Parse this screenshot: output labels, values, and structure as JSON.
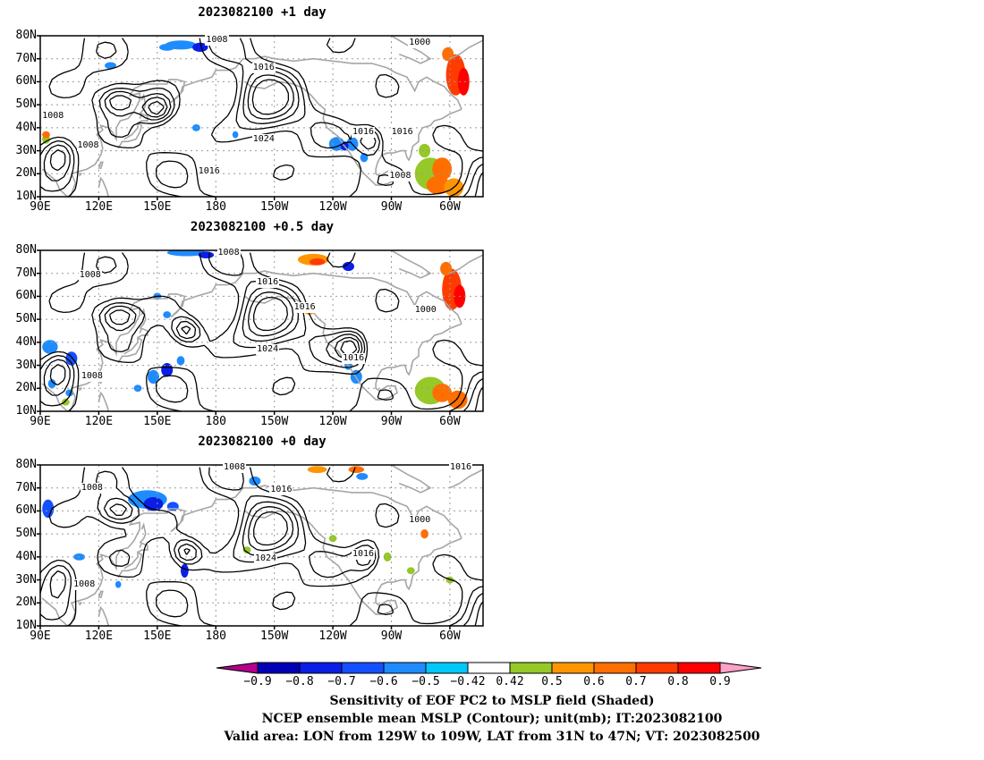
{
  "panels": [
    {
      "title": "2023082100 +1 day",
      "contour_labels": [
        {
          "text": "1008",
          "lon": 181,
          "lat": 78
        },
        {
          "text": "1000",
          "lon": 285,
          "lat": 77
        },
        {
          "text": "1016",
          "lon": 205,
          "lat": 66
        },
        {
          "text": "1008",
          "lon": 97,
          "lat": 45
        },
        {
          "text": "1024",
          "lon": 205,
          "lat": 35
        },
        {
          "text": "1016",
          "lon": 256,
          "lat": 38
        },
        {
          "text": "1016",
          "lon": 276,
          "lat": 38
        },
        {
          "text": "1008",
          "lon": 115,
          "lat": 32
        },
        {
          "text": "1016",
          "lon": 177,
          "lat": 21
        },
        {
          "text": "1008",
          "lon": 275,
          "lat": 19
        }
      ],
      "shading": [
        {
          "lon": 162,
          "lat": 76,
          "rx": 8,
          "ry": 2,
          "v": -0.55
        },
        {
          "lon": 172,
          "lat": 75,
          "rx": 4,
          "ry": 2,
          "v": -0.72
        },
        {
          "lon": 155,
          "lat": 75,
          "rx": 4,
          "ry": 1.5,
          "v": -0.5
        },
        {
          "lon": 126,
          "lat": 67,
          "rx": 3,
          "ry": 1.5,
          "v": -0.5
        },
        {
          "lon": 303,
          "lat": 63,
          "rx": 5,
          "ry": 9,
          "v": 0.75
        },
        {
          "lon": 307,
          "lat": 60,
          "rx": 3,
          "ry": 6,
          "v": 0.82
        },
        {
          "lon": 299,
          "lat": 72,
          "rx": 3,
          "ry": 3,
          "v": 0.62
        },
        {
          "lon": 93,
          "lat": 35,
          "rx": 2,
          "ry": 2,
          "v": 0.5
        },
        {
          "lon": 93,
          "lat": 37,
          "rx": 2,
          "ry": 1.5,
          "v": 0.65
        },
        {
          "lon": 242,
          "lat": 33,
          "rx": 4,
          "ry": 3,
          "v": -0.55
        },
        {
          "lon": 250,
          "lat": 33,
          "rx": 3,
          "ry": 3,
          "v": -0.52
        },
        {
          "lon": 246,
          "lat": 32,
          "rx": 2,
          "ry": 2,
          "v": -0.72
        },
        {
          "lon": 256,
          "lat": 27,
          "rx": 2,
          "ry": 2,
          "v": -0.5
        },
        {
          "lon": 290,
          "lat": 20,
          "rx": 8,
          "ry": 7,
          "v": 0.5
        },
        {
          "lon": 296,
          "lat": 22,
          "rx": 5,
          "ry": 5,
          "v": 0.62
        },
        {
          "lon": 294,
          "lat": 15,
          "rx": 6,
          "ry": 4,
          "v": 0.7
        },
        {
          "lon": 302,
          "lat": 14,
          "rx": 5,
          "ry": 4,
          "v": 0.55
        },
        {
          "lon": 287,
          "lat": 30,
          "rx": 3,
          "ry": 3,
          "v": 0.5
        },
        {
          "lon": 170,
          "lat": 40,
          "rx": 2,
          "ry": 1.5,
          "v": -0.5
        },
        {
          "lon": 190,
          "lat": 37,
          "rx": 1.5,
          "ry": 1.5,
          "v": -0.5
        }
      ],
      "centers": [
        {
          "lon": 130,
          "lat": 52,
          "sx": 10,
          "sy": 6
        },
        {
          "lon": 205,
          "lat": 50,
          "sx": 16,
          "sy": 14
        },
        {
          "lon": 100,
          "lat": 30,
          "sx": 9,
          "sy": 9
        },
        {
          "lon": 260,
          "lat": 35,
          "sx": 8,
          "sy": 7
        },
        {
          "lon": 150,
          "lat": 48,
          "sx": 8,
          "sy": 6
        }
      ]
    },
    {
      "title": "2023082100 +0.5 day",
      "contour_labels": [
        {
          "text": "1008",
          "lon": 187,
          "lat": 79
        },
        {
          "text": "1008",
          "lon": 116,
          "lat": 69
        },
        {
          "text": "1016",
          "lon": 207,
          "lat": 66
        },
        {
          "text": "1016",
          "lon": 226,
          "lat": 55
        },
        {
          "text": "1000",
          "lon": 288,
          "lat": 54
        },
        {
          "text": "1024",
          "lon": 207,
          "lat": 37
        },
        {
          "text": "1016",
          "lon": 251,
          "lat": 33
        },
        {
          "text": "1008",
          "lon": 117,
          "lat": 25
        }
      ],
      "shading": [
        {
          "lon": 165,
          "lat": 79,
          "rx": 10,
          "ry": 1.5,
          "v": -0.5
        },
        {
          "lon": 175,
          "lat": 78,
          "rx": 4,
          "ry": 1.5,
          "v": -0.72
        },
        {
          "lon": 230,
          "lat": 76,
          "rx": 8,
          "ry": 2.5,
          "v": 0.55
        },
        {
          "lon": 232,
          "lat": 75,
          "rx": 4,
          "ry": 1.5,
          "v": 0.72
        },
        {
          "lon": 248,
          "lat": 73,
          "rx": 3,
          "ry": 2,
          "v": -0.72
        },
        {
          "lon": 301,
          "lat": 63,
          "rx": 5,
          "ry": 9,
          "v": 0.75
        },
        {
          "lon": 305,
          "lat": 60,
          "rx": 3,
          "ry": 5,
          "v": 0.82
        },
        {
          "lon": 298,
          "lat": 72,
          "rx": 3,
          "ry": 3,
          "v": 0.62
        },
        {
          "lon": 228,
          "lat": 54,
          "rx": 3,
          "ry": 2,
          "v": 0.58
        },
        {
          "lon": 95,
          "lat": 38,
          "rx": 4,
          "ry": 3,
          "v": -0.55
        },
        {
          "lon": 106,
          "lat": 33,
          "rx": 3,
          "ry": 3,
          "v": -0.65
        },
        {
          "lon": 96,
          "lat": 22,
          "rx": 2,
          "ry": 2,
          "v": -0.55
        },
        {
          "lon": 105,
          "lat": 18,
          "rx": 2,
          "ry": 1.5,
          "v": -0.5
        },
        {
          "lon": 148,
          "lat": 25,
          "rx": 3,
          "ry": 3,
          "v": -0.55
        },
        {
          "lon": 155,
          "lat": 28,
          "rx": 3,
          "ry": 3,
          "v": -0.7
        },
        {
          "lon": 162,
          "lat": 32,
          "rx": 2,
          "ry": 2,
          "v": -0.55
        },
        {
          "lon": 140,
          "lat": 20,
          "rx": 2,
          "ry": 1.5,
          "v": -0.5
        },
        {
          "lon": 252,
          "lat": 25,
          "rx": 3,
          "ry": 3,
          "v": -0.55
        },
        {
          "lon": 248,
          "lat": 30,
          "rx": 2,
          "ry": 2,
          "v": -0.5
        },
        {
          "lon": 290,
          "lat": 19,
          "rx": 8,
          "ry": 6,
          "v": 0.5
        },
        {
          "lon": 296,
          "lat": 18,
          "rx": 5,
          "ry": 4,
          "v": 0.7
        },
        {
          "lon": 304,
          "lat": 15,
          "rx": 5,
          "ry": 4,
          "v": 0.62
        },
        {
          "lon": 103,
          "lat": 14,
          "rx": 2,
          "ry": 1.5,
          "v": 0.5
        },
        {
          "lon": 150,
          "lat": 60,
          "rx": 2,
          "ry": 1.5,
          "v": -0.5
        },
        {
          "lon": 155,
          "lat": 52,
          "rx": 2,
          "ry": 1.5,
          "v": -0.55
        }
      ],
      "centers": [
        {
          "lon": 130,
          "lat": 52,
          "sx": 10,
          "sy": 6
        },
        {
          "lon": 205,
          "lat": 48,
          "sx": 16,
          "sy": 14
        },
        {
          "lon": 100,
          "lat": 30,
          "sx": 9,
          "sy": 9
        },
        {
          "lon": 250,
          "lat": 38,
          "sx": 8,
          "sy": 7
        },
        {
          "lon": 165,
          "lat": 45,
          "sx": 8,
          "sy": 6
        }
      ]
    },
    {
      "title": "2023082100 +0 day",
      "contour_labels": [
        {
          "text": "1008",
          "lon": 190,
          "lat": 79
        },
        {
          "text": "1016",
          "lon": 306,
          "lat": 79
        },
        {
          "text": "1008",
          "lon": 117,
          "lat": 70
        },
        {
          "text": "1016",
          "lon": 214,
          "lat": 69
        },
        {
          "text": "1000",
          "lon": 285,
          "lat": 56
        },
        {
          "text": "1024",
          "lon": 206,
          "lat": 39
        },
        {
          "text": "1016",
          "lon": 256,
          "lat": 41
        },
        {
          "text": "1008",
          "lon": 113,
          "lat": 28
        }
      ],
      "shading": [
        {
          "lon": 145,
          "lat": 65,
          "rx": 10,
          "ry": 4,
          "v": -0.55
        },
        {
          "lon": 148,
          "lat": 63,
          "rx": 5,
          "ry": 3,
          "v": -0.72
        },
        {
          "lon": 158,
          "lat": 62,
          "rx": 3,
          "ry": 2,
          "v": -0.65
        },
        {
          "lon": 94,
          "lat": 61,
          "rx": 3,
          "ry": 4,
          "v": -0.6
        },
        {
          "lon": 110,
          "lat": 40,
          "rx": 3,
          "ry": 1.5,
          "v": -0.55
        },
        {
          "lon": 164,
          "lat": 34,
          "rx": 2,
          "ry": 3,
          "v": -0.75
        },
        {
          "lon": 200,
          "lat": 73,
          "rx": 3,
          "ry": 2,
          "v": -0.5
        },
        {
          "lon": 214,
          "lat": 69,
          "rx": 3,
          "ry": 2,
          "v": 0.5
        },
        {
          "lon": 232,
          "lat": 78,
          "rx": 5,
          "ry": 1.5,
          "v": 0.58
        },
        {
          "lon": 252,
          "lat": 78,
          "rx": 4,
          "ry": 1.5,
          "v": 0.7
        },
        {
          "lon": 255,
          "lat": 75,
          "rx": 3,
          "ry": 1.5,
          "v": -0.55
        },
        {
          "lon": 287,
          "lat": 50,
          "rx": 2,
          "ry": 2,
          "v": 0.65
        },
        {
          "lon": 196,
          "lat": 43,
          "rx": 2,
          "ry": 1.5,
          "v": 0.5
        },
        {
          "lon": 240,
          "lat": 48,
          "rx": 2,
          "ry": 1.5,
          "v": 0.5
        },
        {
          "lon": 268,
          "lat": 40,
          "rx": 2,
          "ry": 2,
          "v": 0.5
        },
        {
          "lon": 280,
          "lat": 34,
          "rx": 2,
          "ry": 1.5,
          "v": 0.5
        },
        {
          "lon": 300,
          "lat": 30,
          "rx": 2,
          "ry": 1.5,
          "v": 0.5
        },
        {
          "lon": 130,
          "lat": 28,
          "rx": 1.5,
          "ry": 1.5,
          "v": -0.5
        }
      ],
      "centers": [
        {
          "lon": 130,
          "lat": 60,
          "sx": 10,
          "sy": 6
        },
        {
          "lon": 205,
          "lat": 48,
          "sx": 16,
          "sy": 14
        },
        {
          "lon": 100,
          "lat": 33,
          "sx": 9,
          "sy": 9
        },
        {
          "lon": 258,
          "lat": 40,
          "sx": 8,
          "sy": 7
        },
        {
          "lon": 165,
          "lat": 42,
          "sx": 8,
          "sy": 6
        }
      ]
    }
  ],
  "lat_ticks": [
    "10N",
    "20N",
    "30N",
    "40N",
    "50N",
    "60N",
    "70N",
    "80N"
  ],
  "lon_ticks": [
    {
      "text": "90E",
      "lon": 90
    },
    {
      "text": "120E",
      "lon": 120
    },
    {
      "text": "150E",
      "lon": 150
    },
    {
      "text": "180",
      "lon": 180
    },
    {
      "text": "150W",
      "lon": 210
    },
    {
      "text": "120W",
      "lon": 240
    },
    {
      "text": "90W",
      "lon": 270
    },
    {
      "text": "60W",
      "lon": 300
    }
  ],
  "colorbar": {
    "tick_labels": [
      "−0.9",
      "−0.8",
      "−0.7",
      "−0.6",
      "−0.5",
      "−0.42",
      "0.42",
      "0.5",
      "0.6",
      "0.7",
      "0.8",
      "0.9"
    ],
    "colors": [
      "#b4008c",
      "#0000b4",
      "#0a1ee6",
      "#1450ff",
      "#1e8cff",
      "#00c8fa",
      "#ffffff",
      "#96c828",
      "#ff9600",
      "#ff6e00",
      "#ff3c00",
      "#ff0000",
      "#ffa0c8"
    ]
  },
  "footer": [
    "Sensitivity of EOF PC2 to MSLP field (Shaded)",
    "NCEP ensemble mean MSLP (Contour); unit(mb); IT:2023082100",
    "Valid area: LON from 129W to 109W, LAT from 31N to 47N; VT: 2023082500"
  ]
}
